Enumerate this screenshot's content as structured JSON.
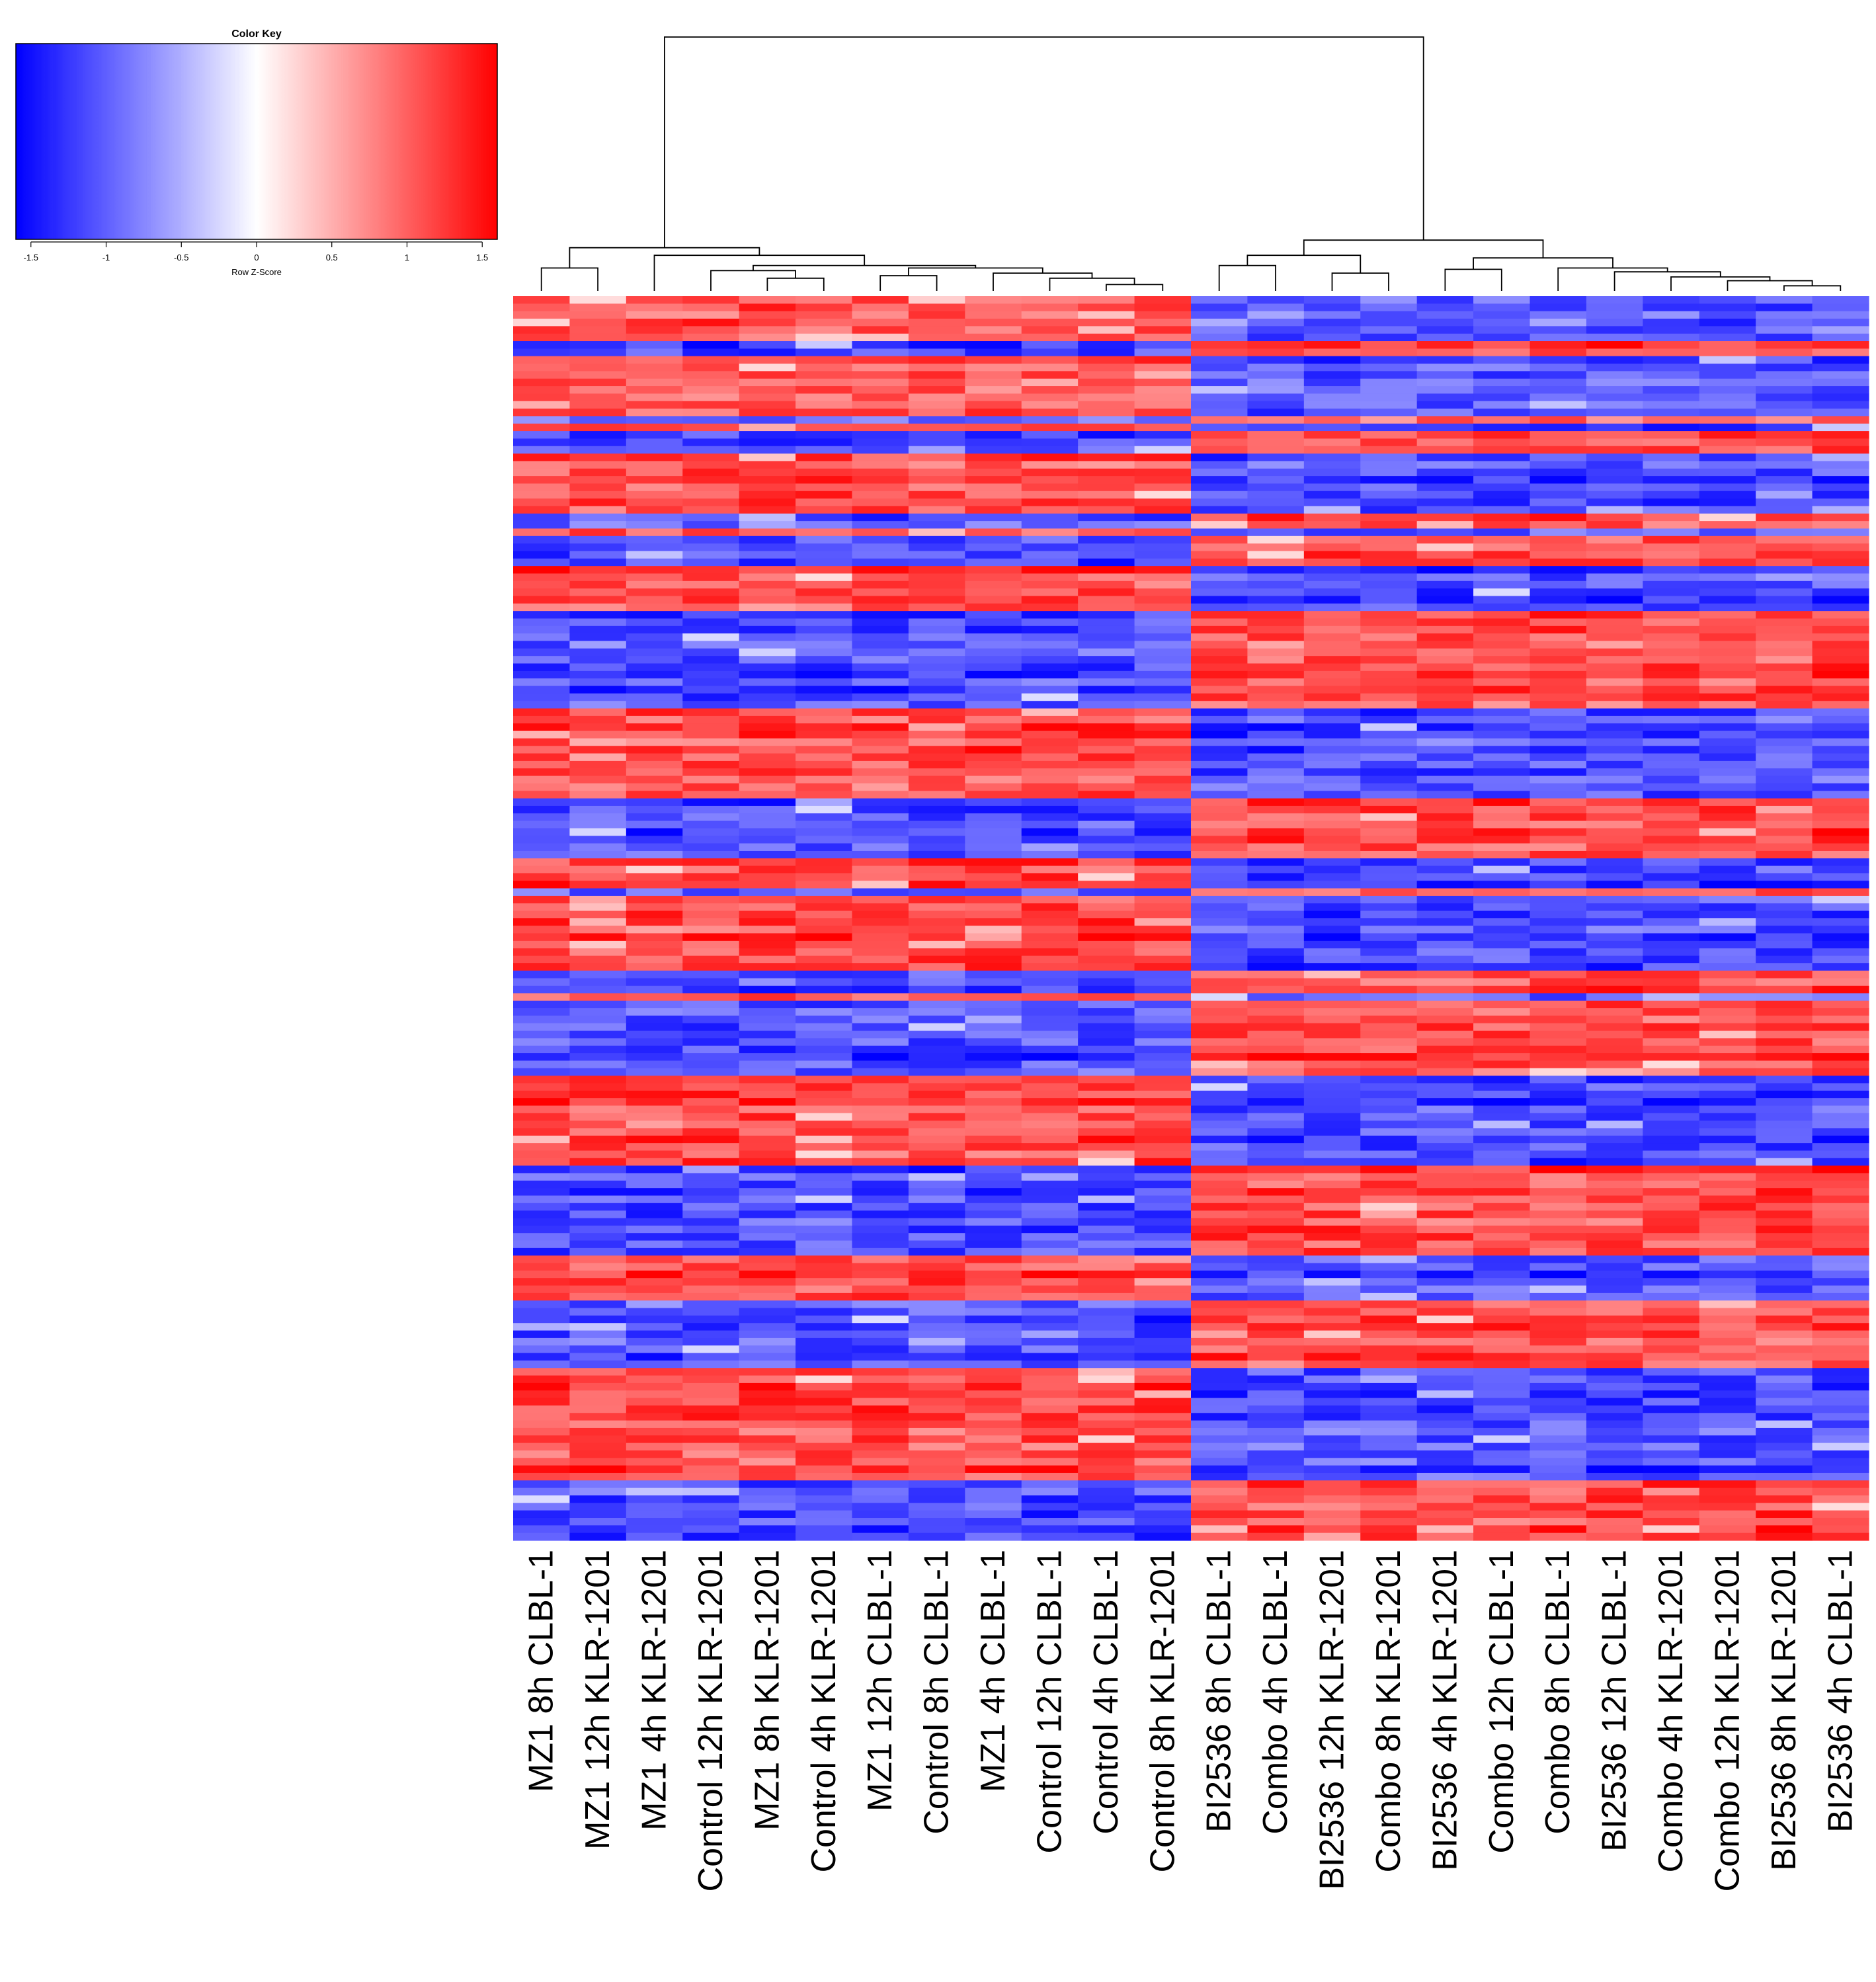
{
  "chart_data": {
    "type": "heatmap",
    "title": "",
    "color_key": {
      "title": "Color Key",
      "xlabel": "Row Z-Score",
      "range": [
        -1.6,
        1.6
      ],
      "ticks": [
        "-1.5",
        "-1",
        "-0.5",
        "0",
        "0.5",
        "1",
        "1.5"
      ],
      "tick_values": [
        -1.5,
        -1,
        -0.5,
        0,
        0.5,
        1,
        1.5
      ],
      "colors": {
        "low": "#0000ff",
        "mid": "#ffffff",
        "high": "#ff0000"
      }
    },
    "columns": [
      "MZ1 8h CLBL-1",
      "MZ1 12h KLR-1201",
      "MZ1 4h KLR-1201",
      "Control 12h KLR-1201",
      "MZ1 8h KLR-1201",
      "Control 4h KLR-1201",
      "MZ1 12h CLBL-1",
      "Control 8h CLBL-1",
      "MZ1 4h CLBL-1",
      "Control 12h CLBL-1",
      "Control 4h CLBL-1",
      "Control 8h KLR-1201",
      "BI2536 8h CLBL-1",
      "Combo 4h CLBL-1",
      "BI2536 12h KLR-1201",
      "Combo 8h KLR-1201",
      "BI2536 4h KLR-1201",
      "Combo 12h CLBL-1",
      "Combo 8h CLBL-1",
      "BI2536 12h CLBL-1",
      "Combo 4h KLR-1201",
      "Combo 12h KLR-1201",
      "BI2536 8h KLR-1201",
      "BI2536 4h CLBL-1"
    ],
    "group_split_after": 12,
    "row_pattern": "aaaaaabbaaaaaaaababbbaaaaaaaabbabbbbaaaaaabbbbbbbbbbbbbaaaaaaaaaaaabbbbbbbbaaaabaaaaaaaaaabbbabbbbbbbbbbaaaaaaaaaaaabbbbbbbbbbbbaaaaaabbbbbbbbbaaaaaaaaaaaaaaabbbbbbbb",
    "row_pattern_legend": {
      "a": "high in MZ1/Control, low in BI2536/Combo",
      "b": "low in MZ1/Control, high in BI2536/Combo"
    },
    "dendrogram": {
      "merges": [
        [
          0,
          1
        ],
        [
          4,
          5
        ],
        [
          3,
          "m1"
        ],
        [
          6,
          7
        ],
        [
          10,
          11
        ],
        [
          9,
          "m4"
        ],
        [
          8,
          "m5"
        ],
        [
          "m3",
          "m6"
        ],
        [
          "m2",
          "m7"
        ],
        [
          2,
          "m8"
        ],
        [
          "m0",
          "m9"
        ],
        [
          12,
          13
        ],
        [
          14,
          15
        ],
        [
          "m11",
          "m12"
        ],
        [
          22,
          23
        ],
        [
          21,
          "m14"
        ],
        [
          20,
          "m15"
        ],
        [
          19,
          "m16"
        ],
        [
          18,
          "m17"
        ],
        [
          16,
          17
        ],
        [
          "m19",
          "m18"
        ],
        [
          "m13",
          "m20"
        ],
        [
          "m10",
          "m21"
        ]
      ],
      "heights": [
        0.09,
        0.05,
        0.08,
        0.06,
        0.025,
        0.05,
        0.07,
        0.09,
        0.1,
        0.14,
        0.17,
        0.1,
        0.07,
        0.14,
        0.02,
        0.04,
        0.055,
        0.075,
        0.09,
        0.085,
        0.13,
        0.2,
        1.0
      ]
    }
  }
}
